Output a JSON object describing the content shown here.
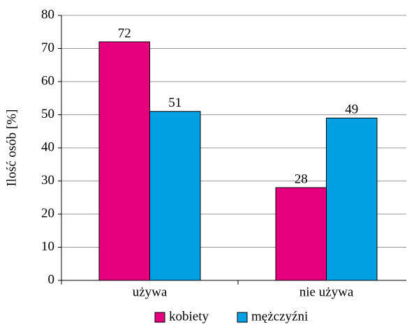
{
  "chart_data": {
    "type": "bar",
    "y_label": "Ilość osób [%]",
    "categories": [
      "używa",
      "nie używa"
    ],
    "series": [
      {
        "name": "kobiety",
        "color": "#e6007e",
        "values": [
          72,
          28
        ]
      },
      {
        "name": "mężczyźni",
        "color": "#00a0e3",
        "values": [
          51,
          49
        ]
      }
    ],
    "ylim": [
      0,
      80
    ],
    "yticks": [
      0,
      10,
      20,
      30,
      40,
      50,
      60,
      70,
      80
    ],
    "grid": true,
    "legend": "bottom"
  }
}
